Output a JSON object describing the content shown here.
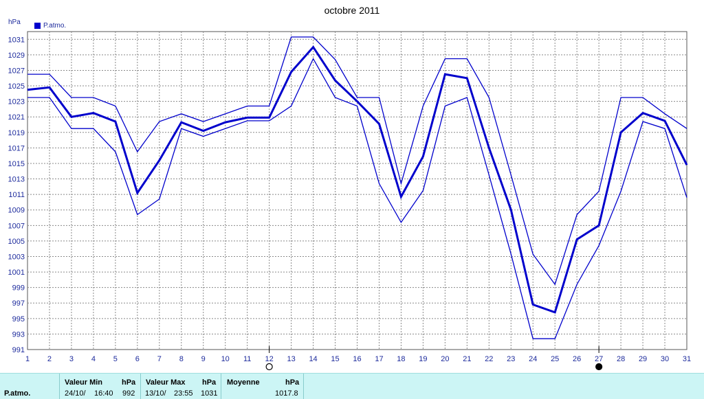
{
  "chart_data": {
    "type": "line",
    "title": "octobre 2011",
    "ylabel": "hPa",
    "legend": {
      "label": "P.atmo.",
      "placement": "top-left"
    },
    "x": [
      1,
      2,
      3,
      4,
      5,
      6,
      7,
      8,
      9,
      10,
      11,
      12,
      13,
      14,
      15,
      16,
      17,
      18,
      19,
      20,
      21,
      22,
      23,
      24,
      25,
      26,
      27,
      28,
      29,
      30,
      31
    ],
    "xlim": [
      1,
      31
    ],
    "ylim": [
      991,
      1032
    ],
    "yticks": [
      991,
      993,
      995,
      997,
      999,
      1001,
      1003,
      1005,
      1007,
      1009,
      1011,
      1013,
      1015,
      1017,
      1019,
      1021,
      1023,
      1025,
      1027,
      1029,
      1031
    ],
    "grid": true,
    "series": [
      {
        "name": "P.atmo.",
        "role": "max",
        "values": [
          1026.5,
          1026.5,
          1023.5,
          1023.5,
          1022.4,
          1016.5,
          1020.4,
          1021.4,
          1020.4,
          1021.4,
          1022.4,
          1022.4,
          1031.3,
          1031.3,
          1028.4,
          1023.5,
          1023.5,
          1012.4,
          1022.4,
          1028.5,
          1028.5,
          1023.5,
          1013.5,
          1003.3,
          999.4,
          1008.4,
          1011.4,
          1023.5,
          1023.5,
          1021.4,
          1019.5
        ]
      },
      {
        "name": "P.atmo.",
        "role": "mean",
        "values": [
          1024.5,
          1024.8,
          1021.0,
          1021.5,
          1020.4,
          1011.2,
          1015.4,
          1020.3,
          1019.2,
          1020.3,
          1020.9,
          1020.9,
          1026.8,
          1030.0,
          1025.7,
          1023.0,
          1020.1,
          1010.7,
          1015.9,
          1026.5,
          1026.0,
          1017.0,
          1009.0,
          996.8,
          995.8,
          1005.2,
          1007.0,
          1019.0,
          1021.5,
          1020.5,
          1014.8
        ]
      },
      {
        "name": "P.atmo.",
        "role": "min",
        "values": [
          1023.5,
          1023.5,
          1019.5,
          1019.5,
          1016.5,
          1008.4,
          1010.4,
          1019.5,
          1018.5,
          1019.5,
          1020.5,
          1020.5,
          1022.4,
          1028.5,
          1023.5,
          1022.4,
          1012.4,
          1007.4,
          1011.5,
          1022.4,
          1023.5,
          1013.5,
          1003.3,
          992.4,
          992.4,
          999.4,
          1004.4,
          1011.4,
          1020.4,
          1019.5,
          1010.6
        ]
      }
    ],
    "moon_markers": [
      {
        "day": 12,
        "phase": "full"
      },
      {
        "day": 27,
        "phase": "new"
      }
    ],
    "colors": {
      "line": "#0000cc",
      "grid": "#888888"
    }
  },
  "unit_label": "hPa",
  "stats": {
    "row_label": "P.atmo.",
    "min_header": "Valeur Min",
    "min_unit": "hPa",
    "min_date": "24/10/",
    "min_time": "16:40",
    "min_value": "992",
    "max_header": "Valeur Max",
    "max_unit": "hPa",
    "max_date": "13/10/",
    "max_time": "23:55",
    "max_value": "1031",
    "avg_header": "Moyenne",
    "avg_unit": "hPa",
    "avg_value": "1017.8"
  }
}
